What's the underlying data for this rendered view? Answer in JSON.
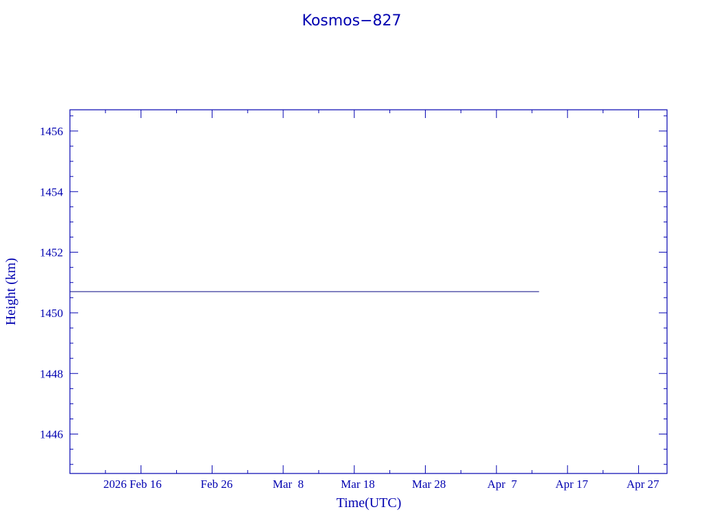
{
  "chart_data": {
    "type": "line",
    "title": "Kosmos−827",
    "xlabel": "Time(UTC)",
    "ylabel": "Height (km)",
    "xlim": [
      "2026-02-06",
      "2026-05-01"
    ],
    "ylim": [
      1444.7,
      1456.7
    ],
    "x_ticks": [
      {
        "date": "2026-02-16",
        "label": "2026 Feb 16"
      },
      {
        "date": "2026-02-26",
        "label": "Feb 26"
      },
      {
        "date": "2026-03-08",
        "label": "Mar  8"
      },
      {
        "date": "2026-03-18",
        "label": "Mar 18"
      },
      {
        "date": "2026-03-28",
        "label": "Mar 28"
      },
      {
        "date": "2026-04-07",
        "label": "Apr  7"
      },
      {
        "date": "2026-04-17",
        "label": "Apr 17"
      },
      {
        "date": "2026-04-27",
        "label": "Apr 27"
      }
    ],
    "x_minor_step_days": 5,
    "y_ticks": [
      1446,
      1448,
      1450,
      1452,
      1454,
      1456
    ],
    "y_minor_step": 0.5,
    "grid": false,
    "series": [
      {
        "x": [
          "2026-02-06",
          "2026-04-13"
        ],
        "y": [
          1450.7,
          1450.7
        ],
        "color": "#000080"
      }
    ],
    "colors": {
      "axis": "#0000b0",
      "text": "#0000b0"
    }
  }
}
